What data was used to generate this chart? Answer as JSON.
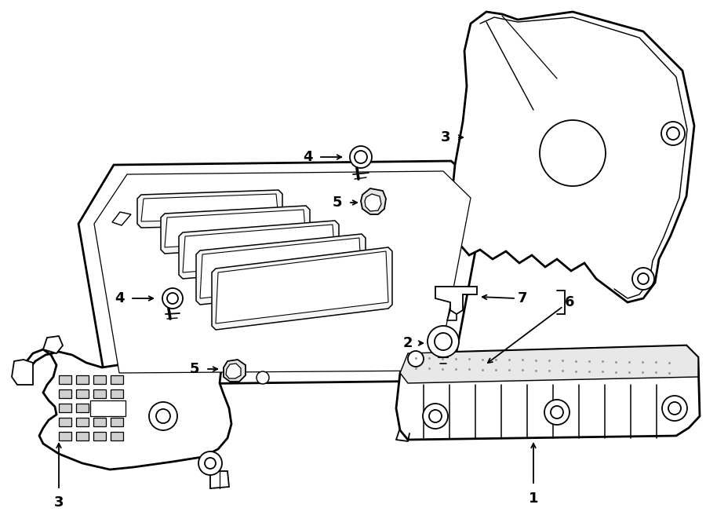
{
  "bg_color": "#ffffff",
  "line_color": "#000000",
  "lw": 1.3,
  "blw": 2.0,
  "fig_width": 9.0,
  "fig_height": 6.61,
  "dpi": 100
}
